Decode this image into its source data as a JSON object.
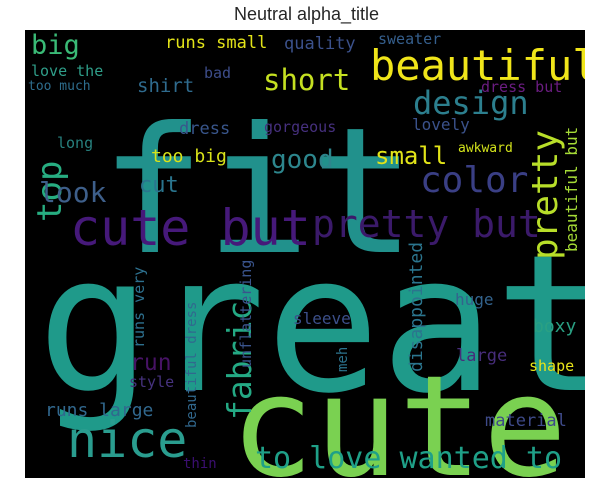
{
  "figure": {
    "title": "Neutral alpha_title",
    "background": "#000000",
    "colormap": "viridis"
  },
  "words": [
    {
      "text": "great",
      "color": "#1f9a8a"
    },
    {
      "text": "fit",
      "color": "#21918c"
    },
    {
      "text": "cute",
      "color": "#7ad151"
    },
    {
      "text": "cute but",
      "color": "#46197a"
    },
    {
      "text": "nice",
      "color": "#2a9d8f"
    },
    {
      "text": "beautiful",
      "color": "#f0e51a"
    },
    {
      "text": "pretty but",
      "color": "#3b1a6a"
    },
    {
      "text": "to love wanted to",
      "color": "#1fa088"
    },
    {
      "text": "fabric",
      "color": "#24a984"
    },
    {
      "text": "color",
      "color": "#3a3f85"
    },
    {
      "text": "design",
      "color": "#2c7f8e"
    },
    {
      "text": "pretty",
      "color": "#b8de29"
    },
    {
      "text": "top",
      "color": "#27ad81"
    },
    {
      "text": "look",
      "color": "#3e5f8a"
    },
    {
      "text": "short",
      "color": "#c5e021"
    },
    {
      "text": "big",
      "color": "#3aba76"
    },
    {
      "text": "good",
      "color": "#2d868d"
    },
    {
      "text": "small",
      "color": "#e2e418"
    },
    {
      "text": "cut",
      "color": "#2a758e"
    },
    {
      "text": "run",
      "color": "#471365"
    },
    {
      "text": "runs large",
      "color": "#31688e"
    },
    {
      "text": "runs small",
      "color": "#e3e418"
    },
    {
      "text": "quality",
      "color": "#3b518b"
    },
    {
      "text": "sweater",
      "color": "#355f8d"
    },
    {
      "text": "love the",
      "color": "#2f9e89"
    },
    {
      "text": "too much",
      "color": "#2e6e8e"
    },
    {
      "text": "bad",
      "color": "#3d4d8a"
    },
    {
      "text": "shirt",
      "color": "#2f6b8e"
    },
    {
      "text": "dress but",
      "color": "#6b1d81"
    },
    {
      "text": "beautiful but",
      "color": "#a5db36"
    },
    {
      "text": "lovely",
      "color": "#3b528b"
    },
    {
      "text": "dress",
      "color": "#39568c"
    },
    {
      "text": "gorgeous",
      "color": "#46307e"
    },
    {
      "text": "long",
      "color": "#27807e"
    },
    {
      "text": "too big",
      "color": "#d8e219"
    },
    {
      "text": "awkward",
      "color": "#d2e21b"
    },
    {
      "text": "runs very",
      "color": "#2d708e"
    },
    {
      "text": "unflattering",
      "color": "#3a548c"
    },
    {
      "text": "disappointed",
      "color": "#2b758e"
    },
    {
      "text": "sleeve",
      "color": "#3c4f8a"
    },
    {
      "text": "huge",
      "color": "#33638d"
    },
    {
      "text": "boxy",
      "color": "#2aa083"
    },
    {
      "text": "large",
      "color": "#472d7b"
    },
    {
      "text": "shape",
      "color": "#e8e419"
    },
    {
      "text": "meh",
      "color": "#2c738e"
    },
    {
      "text": "style",
      "color": "#46327e"
    },
    {
      "text": "beautiful dress",
      "color": "#31688e"
    },
    {
      "text": "material",
      "color": "#3e4a89"
    },
    {
      "text": "thin",
      "color": "#3b0f70"
    }
  ]
}
